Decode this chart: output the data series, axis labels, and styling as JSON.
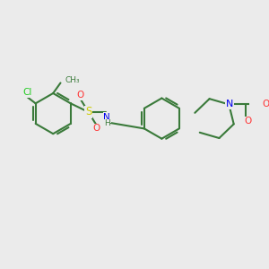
{
  "bg_color": "#ebebeb",
  "bond_color": "#3a7a3a",
  "atom_colors": {
    "Cl": "#22cc22",
    "S": "#cccc00",
    "O": "#ff3333",
    "N": "#0000ee",
    "C": "#3a7a3a",
    "H": "#3a7a3a"
  },
  "line_width": 1.5,
  "figsize": [
    3.0,
    3.0
  ],
  "dpi": 100
}
